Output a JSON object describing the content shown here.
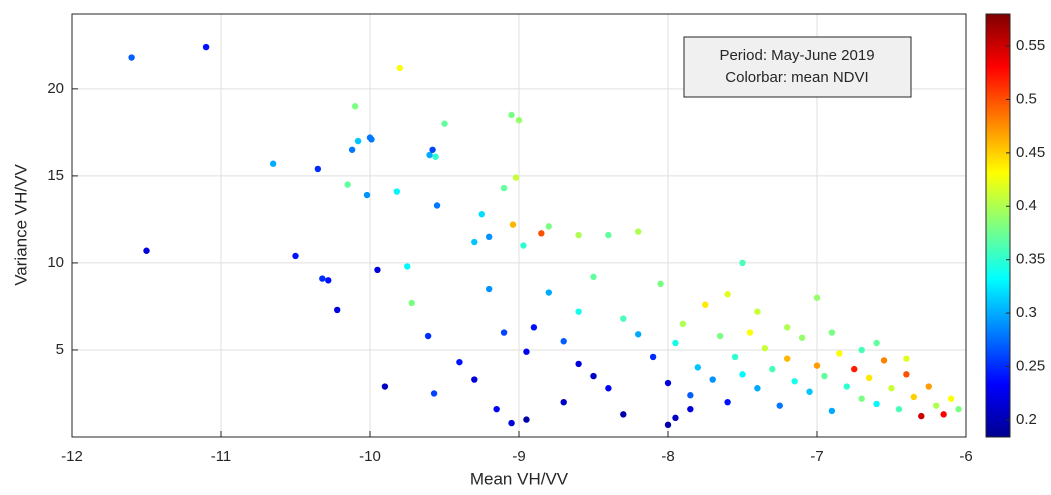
{
  "chart_data": {
    "type": "scatter",
    "xlabel": "Mean VH/VV",
    "ylabel": "Variance VH/VV",
    "annotation": [
      "Period: May-June 2019",
      "Colorbar: mean NDVI"
    ],
    "xlim": [
      -12,
      -6
    ],
    "xticks": [
      -12,
      -11,
      -10,
      -9,
      -8,
      -7,
      -6
    ],
    "ylim": [
      0,
      24.3
    ],
    "yticks": [
      5,
      10,
      15,
      20
    ],
    "clim": [
      0.184,
      0.58
    ],
    "cticks": [
      0.2,
      0.25,
      0.3,
      0.35,
      0.4,
      0.45,
      0.5,
      0.55
    ],
    "colormap": "jet",
    "grid": true,
    "x": [
      -11.6,
      -11.1,
      -11.5,
      -10.65,
      -10.5,
      -10.35,
      -10.32,
      -10.28,
      -10.22,
      -10.1,
      -10.15,
      -10.12,
      -10.08,
      -10.0,
      -9.99,
      -10.02,
      -9.95,
      -9.9,
      -9.8,
      -9.82,
      -9.75,
      -9.72,
      -9.6,
      -9.58,
      -9.56,
      -9.55,
      -9.5,
      -9.61,
      -9.57,
      -9.4,
      -9.3,
      -9.25,
      -9.2,
      -9.1,
      -9.05,
      -9.0,
      -9.02,
      -9.04,
      -8.97,
      -8.8,
      -8.85,
      -8.6,
      -8.4,
      -8.2,
      -7.5,
      -9.05,
      -8.95,
      -9.15,
      -8.0,
      -7.85,
      -8.9,
      -8.7,
      -8.6,
      -8.5,
      -8.4,
      -8.3,
      -8.2,
      -8.1,
      -8.0,
      -7.95,
      -7.9,
      -7.85,
      -7.8,
      -7.75,
      -7.7,
      -7.65,
      -7.6,
      -7.55,
      -7.5,
      -7.45,
      -7.4,
      -7.35,
      -7.3,
      -7.25,
      -7.2,
      -7.15,
      -7.1,
      -7.05,
      -7.0,
      -6.95,
      -6.9,
      -6.85,
      -6.8,
      -6.75,
      -6.7,
      -6.65,
      -6.6,
      -6.55,
      -6.5,
      -6.45,
      -6.4,
      -6.35,
      -6.3,
      -6.25,
      -6.2,
      -6.15,
      -6.1,
      -6.05,
      -8.8,
      -8.6,
      -9.2,
      -9.1,
      -8.95,
      -9.3,
      -8.7,
      -8.3,
      -7.95,
      -7.6,
      -7.2,
      -6.9,
      -6.7,
      -7.0,
      -6.4,
      -8.5,
      -8.05,
      -7.4,
      -6.6
    ],
    "y": [
      21.8,
      22.4,
      10.7,
      15.7,
      10.4,
      15.4,
      9.1,
      9.0,
      7.3,
      19.0,
      14.5,
      16.5,
      17.0,
      17.2,
      17.1,
      13.9,
      9.6,
      2.9,
      21.2,
      14.1,
      9.8,
      7.7,
      16.2,
      16.5,
      16.1,
      13.3,
      18.0,
      5.8,
      2.5,
      4.3,
      11.2,
      12.8,
      11.5,
      14.3,
      18.5,
      18.2,
      14.9,
      12.2,
      11.0,
      12.1,
      11.7,
      11.6,
      11.6,
      11.8,
      10.0,
      0.8,
      1.0,
      1.6,
      0.7,
      1.6,
      6.3,
      5.5,
      4.2,
      3.5,
      2.8,
      6.8,
      5.9,
      4.6,
      3.1,
      5.4,
      6.5,
      2.4,
      4.0,
      7.6,
      3.3,
      5.8,
      2.0,
      4.6,
      3.6,
      6.0,
      2.8,
      5.1,
      3.9,
      1.8,
      4.5,
      3.2,
      5.7,
      2.6,
      4.1,
      3.5,
      1.5,
      4.8,
      2.9,
      3.9,
      2.2,
      3.4,
      1.9,
      4.4,
      2.8,
      1.6,
      3.6,
      2.3,
      1.2,
      2.9,
      1.8,
      1.3,
      2.2,
      1.6,
      8.3,
      7.2,
      8.5,
      6.0,
      4.9,
      3.3,
      2.0,
      1.3,
      1.1,
      8.2,
      6.3,
      6.0,
      5.0,
      8.0,
      4.5,
      9.2,
      8.8,
      7.2,
      5.4
    ],
    "c": [
      0.27,
      0.24,
      0.22,
      0.3,
      0.24,
      0.25,
      0.25,
      0.24,
      0.22,
      0.38,
      0.37,
      0.28,
      0.31,
      0.28,
      0.28,
      0.29,
      0.22,
      0.21,
      0.43,
      0.33,
      0.33,
      0.38,
      0.3,
      0.26,
      0.35,
      0.28,
      0.37,
      0.25,
      0.26,
      0.24,
      0.31,
      0.32,
      0.29,
      0.37,
      0.38,
      0.39,
      0.41,
      0.46,
      0.35,
      0.38,
      0.5,
      0.4,
      0.37,
      0.4,
      0.36,
      0.22,
      0.2,
      0.23,
      0.2,
      0.22,
      0.24,
      0.27,
      0.22,
      0.21,
      0.23,
      0.36,
      0.3,
      0.25,
      0.22,
      0.34,
      0.4,
      0.27,
      0.31,
      0.44,
      0.29,
      0.38,
      0.24,
      0.35,
      0.33,
      0.43,
      0.3,
      0.41,
      0.36,
      0.28,
      0.46,
      0.34,
      0.39,
      0.31,
      0.47,
      0.37,
      0.3,
      0.43,
      0.35,
      0.52,
      0.38,
      0.44,
      0.33,
      0.48,
      0.41,
      0.36,
      0.5,
      0.45,
      0.55,
      0.47,
      0.4,
      0.53,
      0.43,
      0.38,
      0.3,
      0.34,
      0.29,
      0.26,
      0.23,
      0.22,
      0.21,
      0.2,
      0.21,
      0.42,
      0.4,
      0.38,
      0.36,
      0.39,
      0.42,
      0.37,
      0.38,
      0.41,
      0.37
    ]
  }
}
